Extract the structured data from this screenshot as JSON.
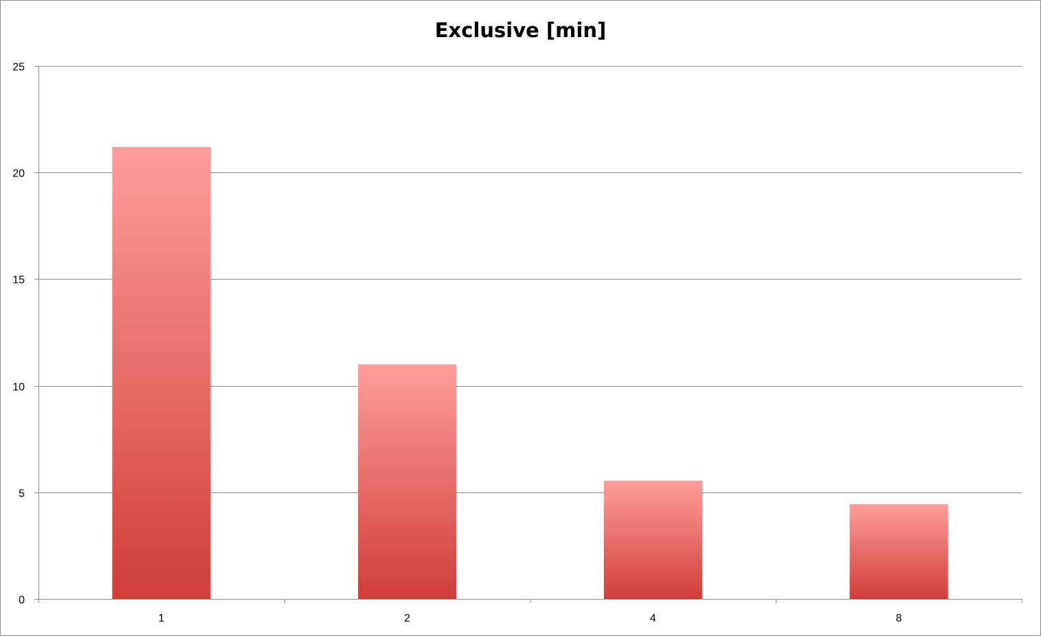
{
  "chart_data": {
    "type": "bar",
    "title": "Exclusive [min]",
    "xlabel": "",
    "ylabel": "",
    "categories": [
      "1",
      "2",
      "4",
      "8"
    ],
    "values": [
      21.2,
      11.0,
      5.55,
      4.45
    ],
    "ylim": [
      0,
      25
    ],
    "yticks": [
      0,
      5,
      10,
      15,
      20,
      25
    ],
    "grid": true,
    "legend": "none",
    "colors": {
      "bar_top": "#fd9d9c",
      "bar_bottom": "#d03e38",
      "gridline": "#8c8c8c",
      "axis": "#8c8c8c"
    }
  }
}
